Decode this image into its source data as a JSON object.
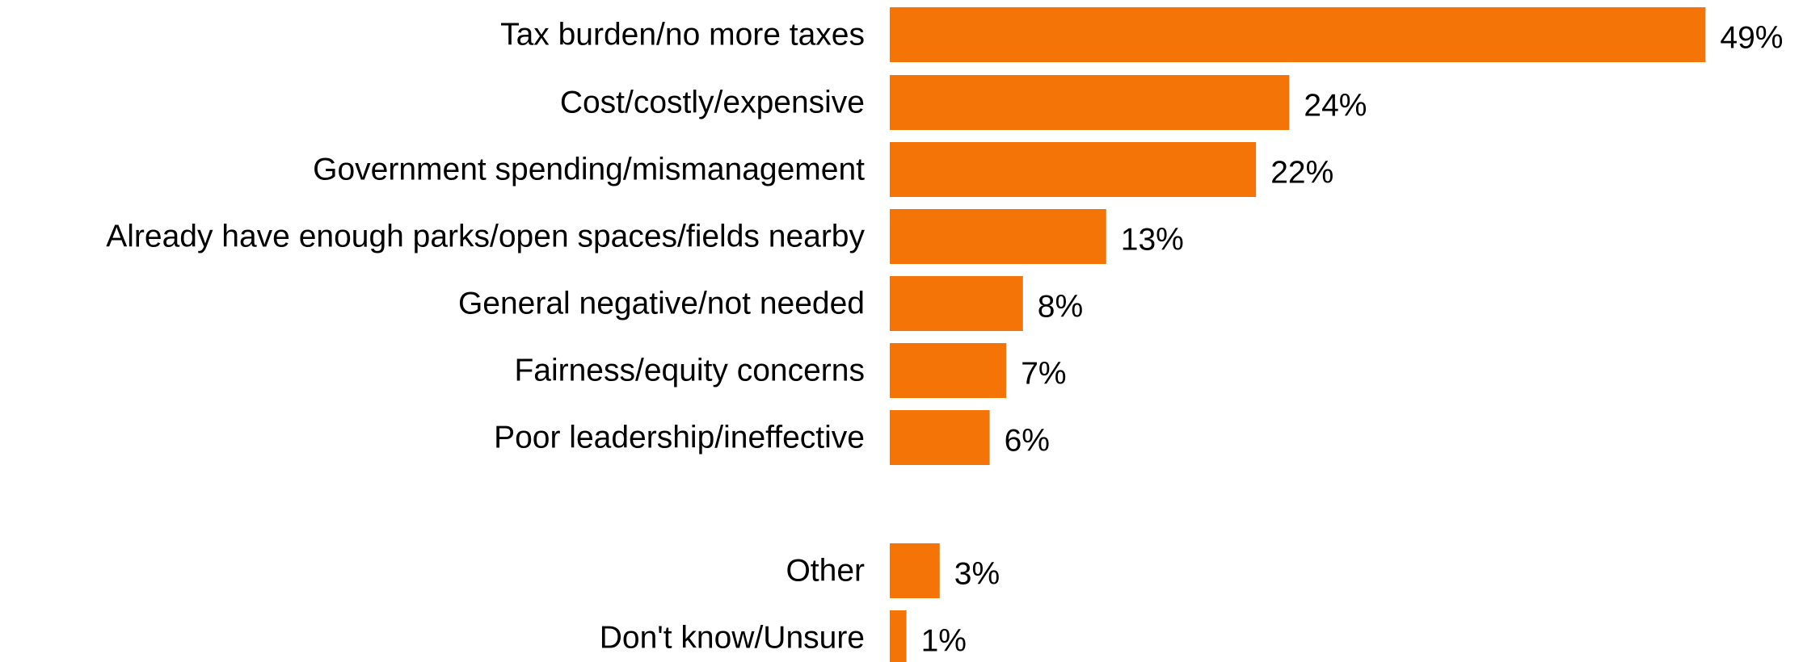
{
  "chart_data": {
    "type": "bar",
    "orientation": "horizontal",
    "categories": [
      "Tax burden/no more taxes",
      "Cost/costly/expensive",
      "Government spending/mismanagement",
      "Already have enough parks/open spaces/fields nearby",
      "General negative/not needed",
      "Fairness/equity concerns",
      "Poor leadership/ineffective",
      "Other",
      "Don't know/Unsure"
    ],
    "values": [
      49,
      24,
      22,
      13,
      8,
      7,
      6,
      3,
      1
    ],
    "value_labels": [
      "49%",
      "24%",
      "22%",
      "13%",
      "8%",
      "7%",
      "6%",
      "3%",
      "1%"
    ],
    "unit": "%",
    "xlim": [
      0,
      49
    ],
    "grid": false,
    "legend": "none",
    "bar_color": "#F57408"
  }
}
